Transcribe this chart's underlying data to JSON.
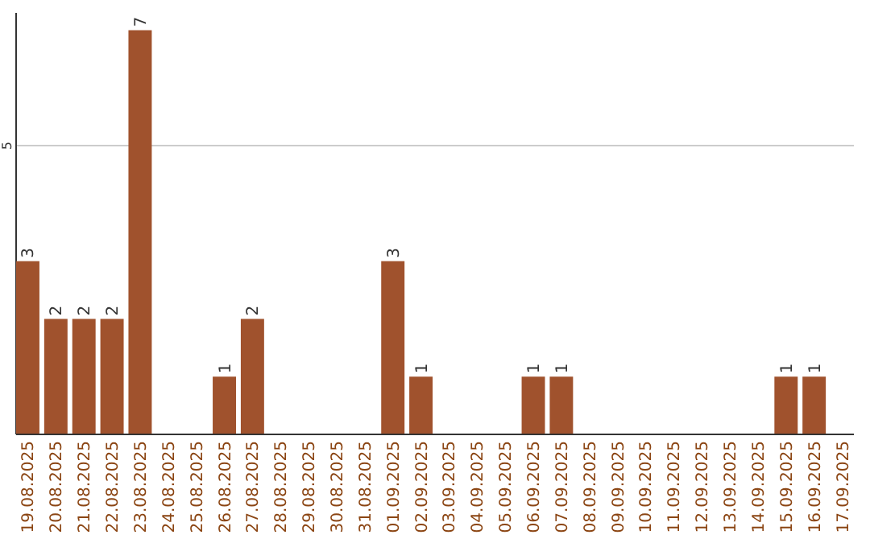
{
  "chart_data": {
    "type": "bar",
    "categories": [
      "19.08.2025",
      "20.08.2025",
      "21.08.2025",
      "22.08.2025",
      "23.08.2025",
      "24.08.2025",
      "25.08.2025",
      "26.08.2025",
      "27.08.2025",
      "28.08.2025",
      "29.08.2025",
      "30.08.2025",
      "31.08.2025",
      "01.09.2025",
      "02.09.2025",
      "03.09.2025",
      "04.09.2025",
      "05.09.2025",
      "06.09.2025",
      "07.09.2025",
      "08.09.2025",
      "09.09.2025",
      "10.09.2025",
      "11.09.2025",
      "12.09.2025",
      "13.09.2025",
      "14.09.2025",
      "15.09.2025",
      "16.09.2025",
      "17.09.2025"
    ],
    "values": [
      3,
      2,
      2,
      2,
      7,
      0,
      0,
      1,
      2,
      0,
      0,
      0,
      0,
      3,
      1,
      0,
      0,
      0,
      1,
      1,
      0,
      0,
      0,
      0,
      0,
      0,
      0,
      1,
      1,
      0
    ],
    "value_labels": [
      "3",
      "2",
      "2",
      "2",
      "7",
      null,
      null,
      "1",
      "2",
      null,
      null,
      null,
      null,
      "3",
      "1",
      null,
      null,
      null,
      "1",
      "1",
      null,
      null,
      null,
      null,
      null,
      null,
      null,
      "1",
      "1",
      null
    ],
    "color": "#a0522d",
    "ylim": [
      0,
      7.3
    ],
    "yticks": [
      5
    ],
    "grid": "y"
  }
}
